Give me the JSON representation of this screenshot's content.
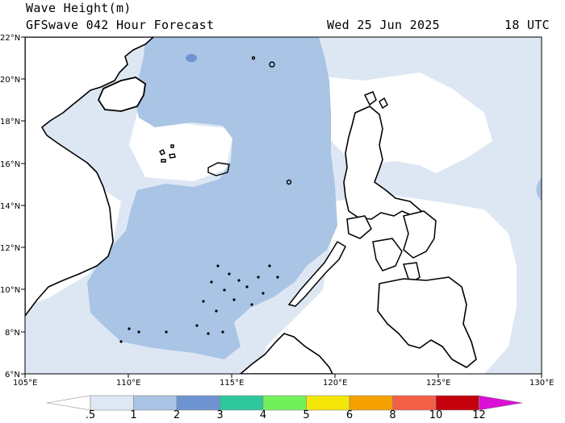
{
  "header": {
    "title": "Wave Height(m)",
    "subtitle": "GFSwave 042 Hour Forecast",
    "date": "Wed 25 Jun 2025",
    "time": "18 UTC"
  },
  "map": {
    "region": "South China Sea / Philippines",
    "lon_range": [
      105,
      130
    ],
    "lat_range": [
      6,
      22
    ],
    "lat_labels": [
      "22°N",
      "20°N",
      "18°N",
      "16°N",
      "14°N",
      "12°N",
      "10°N",
      "8°N",
      "6°N"
    ],
    "lon_labels": [
      "105°E",
      "110°E",
      "115°E",
      "120°E",
      "125°E",
      "130°E"
    ],
    "colors": {
      "land": "#ffffff",
      "coast": "#000000",
      "wave_0_5": "#ffffff",
      "wave_0_5_1": "#dde7f4",
      "wave_1_2": "#a9c4e4",
      "wave_2_3": "#6d94d0",
      "edge_bar": "#1a1f8a"
    }
  },
  "colorbar": {
    "labels": [
      ".5",
      "1",
      "2",
      "3",
      "4",
      "5",
      "6",
      "8",
      "10",
      "12"
    ],
    "colors": [
      "#ffffff",
      "#dfe8f5",
      "#a9c4e4",
      "#6d94d0",
      "#2ec79c",
      "#72f05c",
      "#f5e60a",
      "#f4a100",
      "#f45f47",
      "#c3000b",
      "#d90fd6"
    ]
  }
}
